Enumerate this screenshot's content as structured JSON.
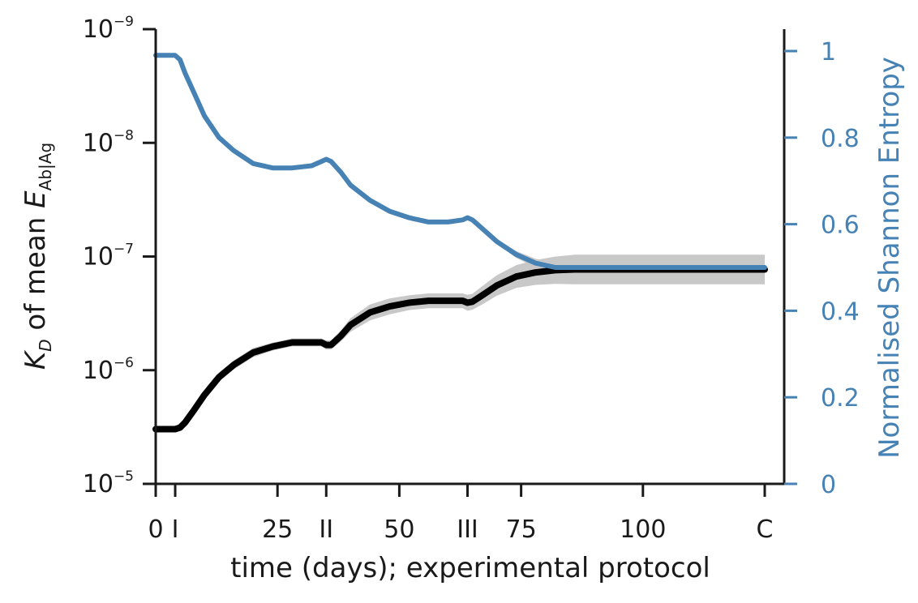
{
  "chart_data": {
    "type": "line",
    "xlabel": "time (days); experimental protocol",
    "x_ticks": [
      {
        "x": 0,
        "label": "0"
      },
      {
        "x": 4,
        "label": "I"
      },
      {
        "x": 25,
        "label": "25"
      },
      {
        "x": 35,
        "label": "II"
      },
      {
        "x": 50,
        "label": "50"
      },
      {
        "x": 64,
        "label": "III"
      },
      {
        "x": 75,
        "label": "75"
      },
      {
        "x": 100,
        "label": "100"
      },
      {
        "x": 125,
        "label": "C"
      }
    ],
    "xlim": [
      0,
      125
    ],
    "left_axis": {
      "label_main": "K",
      "label_sub": "D",
      "label_mid": " of mean ",
      "label_E": "E",
      "label_E_sub": "Ab|Ag",
      "scale": "log",
      "ylim": [
        1e-05,
        1e-09
      ],
      "inverted": true,
      "ticks": [
        {
          "value": 1e-09,
          "base": "10",
          "exp": "−9"
        },
        {
          "value": 1e-08,
          "base": "10",
          "exp": "−8"
        },
        {
          "value": 1e-07,
          "base": "10",
          "exp": "−7"
        },
        {
          "value": 1e-06,
          "base": "10",
          "exp": "−6"
        },
        {
          "value": 1e-05,
          "base": "10",
          "exp": "−5"
        }
      ],
      "color": "#000000"
    },
    "right_axis": {
      "label": "Normalised Shannon Entropy",
      "scale": "linear",
      "ylim": [
        0,
        1.05
      ],
      "ticks": [
        {
          "value": 0,
          "label": "0"
        },
        {
          "value": 0.2,
          "label": "0.2"
        },
        {
          "value": 0.4,
          "label": "0.4"
        },
        {
          "value": 0.6,
          "label": "0.6"
        },
        {
          "value": 0.8,
          "label": "0.8"
        },
        {
          "value": 1,
          "label": "1"
        }
      ],
      "color": "#4682b4"
    },
    "series": [
      {
        "axis": "left",
        "color": "#000000",
        "band_color": "#c8c8c8",
        "x": [
          0,
          4,
          5,
          6,
          8,
          10,
          13,
          16,
          20,
          24,
          28,
          32,
          34,
          35,
          36,
          38,
          40,
          44,
          48,
          52,
          56,
          60,
          63,
          64,
          65,
          67,
          70,
          74,
          78,
          82,
          86,
          90,
          100,
          110,
          125
        ],
        "y": [
          3.3e-06,
          3.3e-06,
          3.2e-06,
          2.9e-06,
          2.2e-06,
          1.65e-06,
          1.15e-06,
          9e-07,
          7e-07,
          6.2e-07,
          5.7e-07,
          5.7e-07,
          5.7e-07,
          6e-07,
          6e-07,
          5e-07,
          4e-07,
          3.1e-07,
          2.75e-07,
          2.55e-07,
          2.45e-07,
          2.45e-07,
          2.45e-07,
          2.55e-07,
          2.5e-07,
          2.2e-07,
          1.8e-07,
          1.5e-07,
          1.38e-07,
          1.32e-07,
          1.3e-07,
          1.3e-07,
          1.3e-07,
          1.3e-07,
          1.3e-07
        ],
        "band_width": [
          0,
          0,
          0,
          0.02,
          0.03,
          0.035,
          0.04,
          0.04,
          0.04,
          0.035,
          0.035,
          0.035,
          0.035,
          0.04,
          0.04,
          0.05,
          0.06,
          0.07,
          0.07,
          0.065,
          0.065,
          0.065,
          0.065,
          0.07,
          0.07,
          0.08,
          0.09,
          0.1,
          0.11,
          0.12,
          0.13,
          0.13,
          0.13,
          0.13,
          0.13
        ]
      },
      {
        "axis": "right",
        "color": "#4682b4",
        "band_color": "#c8c8c8",
        "x": [
          0,
          4,
          5,
          6,
          8,
          10,
          13,
          16,
          20,
          24,
          28,
          32,
          34,
          35,
          36,
          38,
          40,
          44,
          48,
          52,
          56,
          60,
          63,
          64,
          65,
          67,
          70,
          74,
          78,
          82,
          86,
          90,
          100,
          110,
          125
        ],
        "y": [
          0.99,
          0.99,
          0.98,
          0.95,
          0.9,
          0.85,
          0.8,
          0.77,
          0.74,
          0.73,
          0.73,
          0.735,
          0.745,
          0.75,
          0.745,
          0.72,
          0.69,
          0.655,
          0.63,
          0.615,
          0.605,
          0.605,
          0.61,
          0.615,
          0.61,
          0.59,
          0.56,
          0.53,
          0.51,
          0.5,
          0.5,
          0.5,
          0.5,
          0.5,
          0.5
        ],
        "band_width": [
          0,
          0,
          0,
          0,
          0,
          0,
          0,
          0,
          0,
          0,
          0,
          0,
          0,
          0,
          0,
          0,
          0,
          0,
          0,
          0,
          0,
          0,
          0,
          0,
          0,
          0,
          0.005,
          0.008,
          0.01,
          0.012,
          0.015,
          0.015,
          0.015,
          0.015,
          0.015
        ]
      }
    ]
  }
}
